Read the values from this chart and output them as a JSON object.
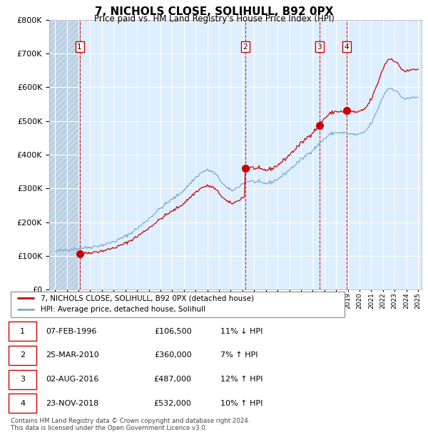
{
  "title": "7, NICHOLS CLOSE, SOLIHULL, B92 0PX",
  "subtitle": "Price paid vs. HM Land Registry's House Price Index (HPI)",
  "legend_label_red": "7, NICHOLS CLOSE, SOLIHULL, B92 0PX (detached house)",
  "legend_label_blue": "HPI: Average price, detached house, Solihull",
  "footer": "Contains HM Land Registry data © Crown copyright and database right 2024.\nThis data is licensed under the Open Government Licence v3.0.",
  "transactions": [
    {
      "num": 1,
      "date": "07-FEB-1996",
      "price": "£106,500",
      "rel": "11% ↓ HPI"
    },
    {
      "num": 2,
      "date": "25-MAR-2010",
      "price": "£360,000",
      "rel": "7% ↑ HPI"
    },
    {
      "num": 3,
      "date": "02-AUG-2016",
      "price": "£487,000",
      "rel": "12% ↑ HPI"
    },
    {
      "num": 4,
      "date": "23-NOV-2018",
      "price": "£532,000",
      "rel": "10% ↑ HPI"
    }
  ],
  "trans_dec": [
    1996.096,
    2010.228,
    2016.586,
    2018.896
  ],
  "trans_prices": [
    106500,
    360000,
    487000,
    532000
  ],
  "red_color": "#cc0000",
  "blue_color": "#7aaad0",
  "bg_color": "#ddeeff",
  "hatch_color": "#c5d8e8",
  "grid_color": "#ffffff",
  "vline_color": "#cc0000",
  "ylim": [
    0,
    800000
  ],
  "yticks": [
    0,
    100000,
    200000,
    300000,
    400000,
    500000,
    600000,
    700000,
    800000
  ],
  "xstart": 1993.5,
  "xend": 2025.3
}
